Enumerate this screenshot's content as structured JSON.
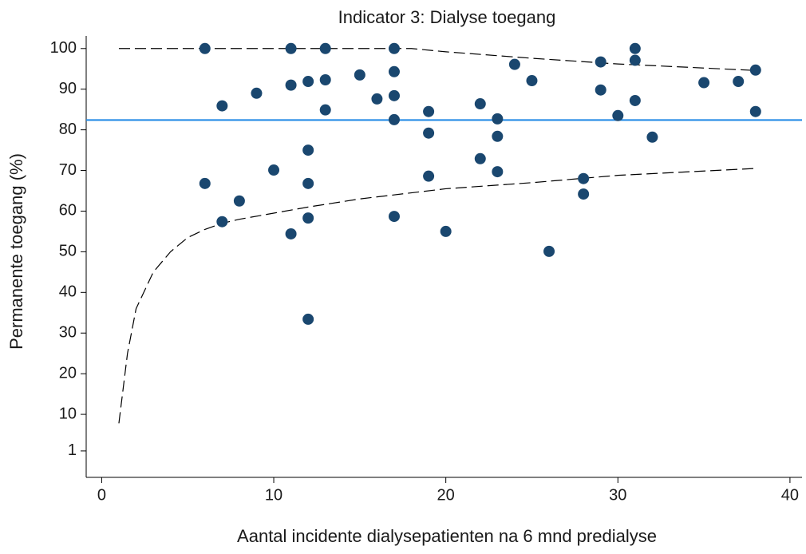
{
  "chart_data": {
    "type": "scatter",
    "title": "Indicator 3: Dialyse toegang",
    "x_label": "Aantal incidente dialysepatienten na 6 mnd predialyse",
    "y_label": "Permanente toegang (%)",
    "xlim": [
      -0.9,
      40.7
    ],
    "ylim": [
      -5.5,
      103.1
    ],
    "xticks": [
      0,
      10,
      20,
      30,
      40
    ],
    "yticks": [
      1,
      10,
      20,
      30,
      40,
      50,
      60,
      70,
      80,
      90,
      100
    ],
    "series": [
      {
        "color": "#1a476f",
        "x": [
          6,
          6,
          7,
          7,
          8,
          9,
          10,
          11,
          11,
          11,
          12,
          12,
          12,
          12,
          12,
          13,
          13,
          13,
          15,
          16,
          17,
          17,
          17,
          17,
          17,
          19,
          19,
          19,
          20,
          22,
          22,
          23,
          23,
          23,
          24,
          25,
          26,
          28,
          28,
          29,
          29,
          30,
          31,
          31,
          31,
          32,
          35,
          37,
          38,
          38
        ],
        "values": [
          100,
          66.8,
          85.9,
          57.4,
          62.5,
          89.0,
          70.1,
          100,
          91.0,
          54.4,
          91.9,
          75.0,
          66.8,
          58.3,
          33.4,
          100,
          92.3,
          84.9,
          93.5,
          87.6,
          100,
          94.3,
          88.4,
          82.5,
          58.7,
          84.5,
          79.2,
          68.6,
          55.0,
          86.4,
          72.9,
          82.7,
          78.4,
          69.7,
          96.1,
          92.1,
          50.1,
          68.0,
          64.2,
          96.7,
          89.8,
          83.5,
          100,
          97.1,
          87.2,
          78.2,
          91.6,
          91.9,
          94.7,
          84.5
        ]
      }
    ],
    "reference_line": {
      "value": 82.4,
      "color": "#1e88e5"
    },
    "limits": [
      {
        "color": "#000000",
        "dashed": true,
        "x": [
          1,
          18,
          20,
          25,
          30,
          38
        ],
        "values": [
          100,
          100,
          99.2,
          97.6,
          96.2,
          94.6
        ]
      },
      {
        "color": "#000000",
        "dashed": true,
        "x": [
          1,
          1.5,
          2,
          3,
          4,
          5,
          6,
          7,
          8,
          10,
          12,
          15,
          18,
          20,
          25,
          30,
          38
        ],
        "values": [
          7.8,
          25,
          36,
          45,
          50,
          53.5,
          55.5,
          57,
          58,
          59.5,
          61,
          63,
          64.5,
          65.5,
          67,
          68.8,
          70.5
        ]
      }
    ]
  }
}
